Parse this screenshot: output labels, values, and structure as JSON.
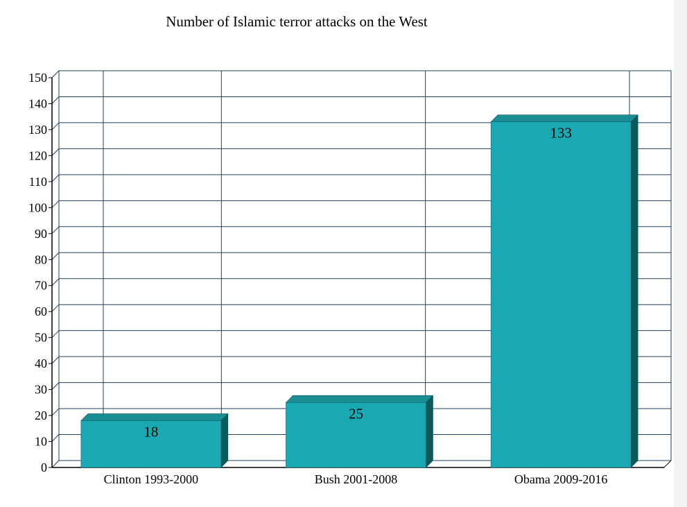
{
  "chart_data": {
    "type": "bar",
    "title": "Number of Islamic terror attacks on the West",
    "categories": [
      "Clinton 1993-2000",
      "Bush 2001-2008",
      "Obama 2009-2016"
    ],
    "values": [
      18,
      25,
      133
    ],
    "data_labels": [
      "18",
      "25",
      "133"
    ],
    "ylim": [
      0,
      150
    ],
    "yticks": [
      0,
      10,
      20,
      30,
      40,
      50,
      60,
      70,
      80,
      90,
      100,
      110,
      120,
      130,
      140,
      150
    ],
    "ytick_labels": [
      "0",
      "10",
      "20",
      "30",
      "40",
      "50",
      "60",
      "70",
      "80",
      "90",
      "100",
      "110",
      "120",
      "130",
      "140",
      "150"
    ],
    "xlabel": "",
    "ylabel": "",
    "grid": true,
    "style": "3d",
    "colors": {
      "bar_front": "#1aa9b2",
      "bar_top": "#1b8e93",
      "bar_side": "#0c5a5c",
      "grid": "#1f3f5f",
      "axis": "#000000",
      "background": "#ffffff",
      "page_background": "#f3f3f3"
    }
  }
}
